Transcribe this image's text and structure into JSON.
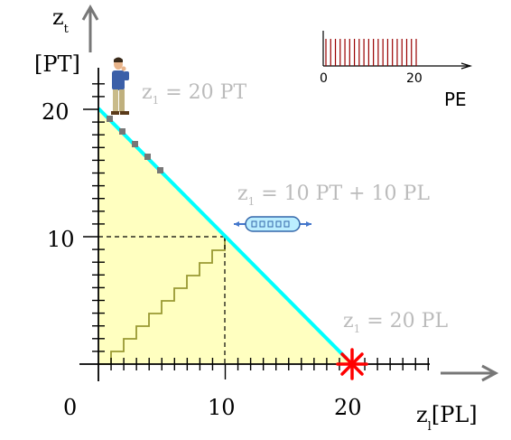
{
  "axes": {
    "y_var": "z",
    "y_sub": "t",
    "y_unit": "[PT]",
    "x_var": "z",
    "x_sub": "l",
    "x_unit": "[PL]",
    "origin": "0",
    "x_ticks": [
      "10",
      "20"
    ],
    "y_ticks": [
      "20",
      "10"
    ]
  },
  "annotations": {
    "top": {
      "var": "z",
      "sub": "1",
      "rest": " = 20 PT"
    },
    "mid": {
      "var": "z",
      "sub": "1",
      "rest": " = 10 PT + 10 PL"
    },
    "bottom": {
      "var": "z",
      "sub": "1",
      "rest": " = 20 PL"
    }
  },
  "inset": {
    "tick_start": "0",
    "tick_end": "20",
    "label": "PE",
    "spike_count": 20
  },
  "colors": {
    "constraint_line": "#00ffff",
    "feasible_fill": "#ffffc0",
    "staircase": "#999933",
    "marker": "#ff0000",
    "label_gray": "#bbbbbb",
    "axis_gray": "#777777",
    "spike": "#990000"
  },
  "icons": {
    "person": "person-thinking-icon",
    "chip": "chip-icon",
    "star": "red-star-icon"
  }
}
